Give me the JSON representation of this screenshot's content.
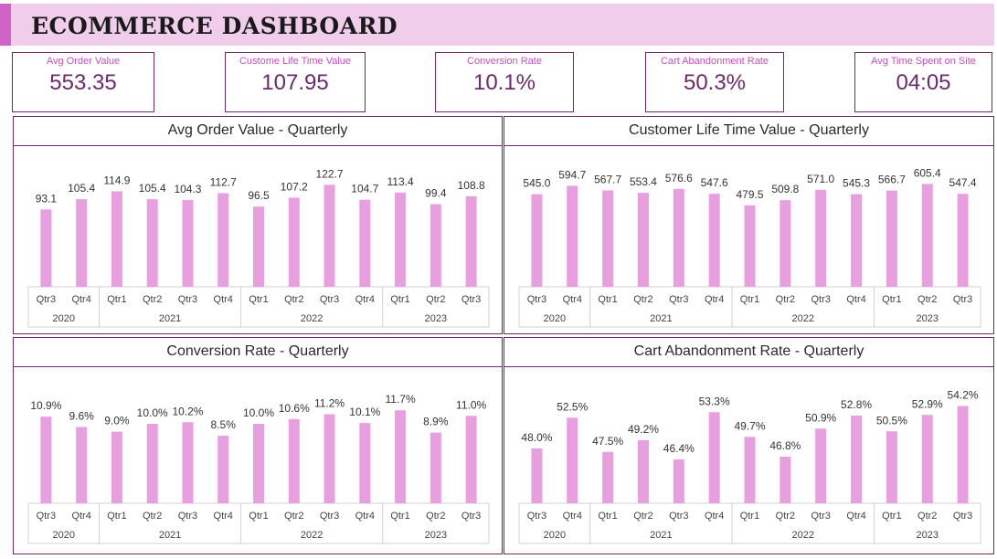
{
  "title": "ECOMMERCE DASHBOARD",
  "kpis": [
    {
      "label": "Avg Order Value",
      "value": "553.35"
    },
    {
      "label": "Custome Life Time Value",
      "value": "107.95"
    },
    {
      "label": "Conversion Rate",
      "value": "10.1%"
    },
    {
      "label": "Cart Abandonment Rate",
      "value": "50.3%"
    },
    {
      "label": "Avg Time Spent on Site",
      "value": "04:05"
    }
  ],
  "colors": {
    "bar": "#e89fe0",
    "border": "#6b2a6b",
    "title_bg": "#f1cdec",
    "accent": "#d062c8",
    "kpi_label": "#c44fc0"
  },
  "chart_data": [
    {
      "type": "bar",
      "title": "Avg Order Value - Quarterly",
      "categories": [
        "Qtr3",
        "Qtr4",
        "Qtr1",
        "Qtr2",
        "Qtr3",
        "Qtr4",
        "Qtr1",
        "Qtr2",
        "Qtr3",
        "Qtr4",
        "Qtr1",
        "Qtr2",
        "Qtr3"
      ],
      "years": [
        {
          "label": "2020",
          "count": 2
        },
        {
          "label": "2021",
          "count": 4
        },
        {
          "label": "2022",
          "count": 4
        },
        {
          "label": "2023",
          "count": 3
        }
      ],
      "values": [
        93.1,
        105.4,
        114.9,
        105.4,
        104.3,
        112.7,
        96.5,
        107.2,
        122.7,
        104.7,
        113.4,
        99.4,
        108.8
      ],
      "labels": [
        "93.1",
        "105.4",
        "114.9",
        "105.4",
        "104.3",
        "112.7",
        "96.5",
        "107.2",
        "122.7",
        "104.7",
        "113.4",
        "99.4",
        "108.8"
      ]
    },
    {
      "type": "bar",
      "title": "Customer Life Time Value - Quarterly",
      "categories": [
        "Qtr3",
        "Qtr4",
        "Qtr1",
        "Qtr2",
        "Qtr3",
        "Qtr4",
        "Qtr1",
        "Qtr2",
        "Qtr3",
        "Qtr4",
        "Qtr1",
        "Qtr2",
        "Qtr3"
      ],
      "years": [
        {
          "label": "2020",
          "count": 2
        },
        {
          "label": "2021",
          "count": 4
        },
        {
          "label": "2022",
          "count": 4
        },
        {
          "label": "2023",
          "count": 3
        }
      ],
      "values": [
        545.0,
        594.7,
        567.7,
        553.4,
        576.6,
        547.6,
        479.5,
        509.8,
        571.0,
        545.3,
        566.7,
        605.4,
        547.4
      ],
      "labels": [
        "545.0",
        "594.7",
        "567.7",
        "553.4",
        "576.6",
        "547.6",
        "479.5",
        "509.8",
        "571.0",
        "545.3",
        "566.7",
        "605.4",
        "547.4"
      ]
    },
    {
      "type": "bar",
      "title": "Conversion Rate - Quarterly",
      "categories": [
        "Qtr3",
        "Qtr4",
        "Qtr1",
        "Qtr2",
        "Qtr3",
        "Qtr4",
        "Qtr1",
        "Qtr2",
        "Qtr3",
        "Qtr4",
        "Qtr1",
        "Qtr2",
        "Qtr3"
      ],
      "years": [
        {
          "label": "2020",
          "count": 2
        },
        {
          "label": "2021",
          "count": 4
        },
        {
          "label": "2022",
          "count": 4
        },
        {
          "label": "2023",
          "count": 3
        }
      ],
      "values": [
        10.9,
        9.6,
        9.0,
        10.0,
        10.2,
        8.5,
        10.0,
        10.6,
        11.2,
        10.1,
        11.7,
        8.9,
        11.0
      ],
      "labels": [
        "10.9%",
        "9.6%",
        "9.0%",
        "10.0%",
        "10.2%",
        "8.5%",
        "10.0%",
        "10.6%",
        "11.2%",
        "10.1%",
        "11.7%",
        "8.9%",
        "11.0%"
      ]
    },
    {
      "type": "bar",
      "title": "Cart Abandonment Rate - Quarterly",
      "categories": [
        "Qtr3",
        "Qtr4",
        "Qtr1",
        "Qtr2",
        "Qtr3",
        "Qtr4",
        "Qtr1",
        "Qtr2",
        "Qtr3",
        "Qtr4",
        "Qtr1",
        "Qtr2",
        "Qtr3"
      ],
      "years": [
        {
          "label": "2020",
          "count": 2
        },
        {
          "label": "2021",
          "count": 4
        },
        {
          "label": "2022",
          "count": 4
        },
        {
          "label": "2023",
          "count": 3
        }
      ],
      "values": [
        48.0,
        52.5,
        47.5,
        49.2,
        46.4,
        53.3,
        49.7,
        46.8,
        50.9,
        52.8,
        50.5,
        52.9,
        54.2
      ],
      "labels": [
        "48.0%",
        "52.5%",
        "47.5%",
        "49.2%",
        "46.4%",
        "53.3%",
        "49.7%",
        "46.8%",
        "50.9%",
        "52.8%",
        "50.5%",
        "52.9%",
        "54.2%"
      ]
    }
  ]
}
